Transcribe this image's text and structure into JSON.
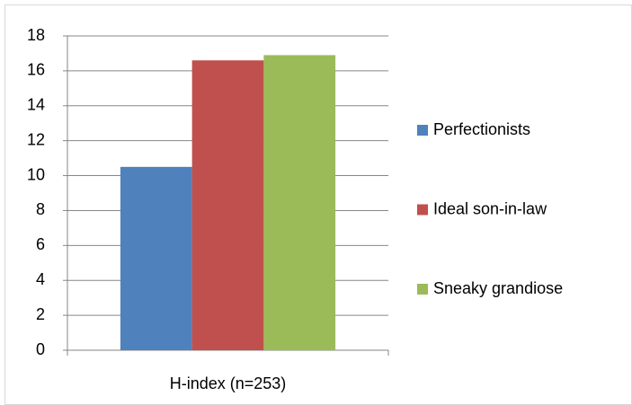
{
  "chart_data": {
    "type": "bar",
    "categories": [
      "H-index (n=253)"
    ],
    "series": [
      {
        "name": "Perfectionists",
        "color": "#4f81bd",
        "values": [
          10.5
        ]
      },
      {
        "name": "Ideal son-in-law",
        "color": "#c0504d",
        "values": [
          16.6
        ]
      },
      {
        "name": "Sneaky grandiose",
        "color": "#9bbb59",
        "values": [
          16.9
        ]
      }
    ],
    "ylim": [
      0,
      18
    ],
    "yticks": [
      0,
      2,
      4,
      6,
      8,
      10,
      12,
      14,
      16,
      18
    ],
    "grid": true,
    "legend": "right"
  }
}
